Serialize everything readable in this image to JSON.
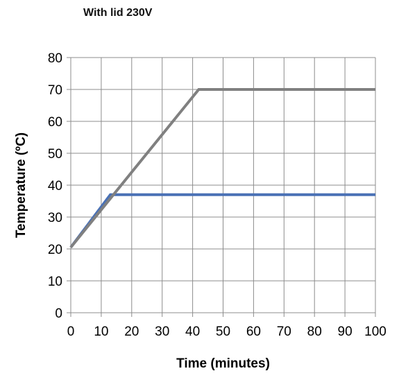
{
  "chart_data": {
    "type": "line",
    "title": "With lid 230V",
    "xlabel": "Time (minutes)",
    "ylabel": "Temperature (ºC)",
    "xlim": [
      0,
      100
    ],
    "ylim": [
      0,
      80
    ],
    "x_ticks": [
      0,
      10,
      20,
      30,
      40,
      50,
      60,
      70,
      80,
      90,
      100
    ],
    "y_ticks": [
      0,
      10,
      20,
      30,
      40,
      50,
      60,
      70,
      80
    ],
    "grid": true,
    "legend": "none",
    "series": [
      {
        "color": "#4a71b5",
        "points": [
          [
            0,
            20.5
          ],
          [
            13,
            37
          ],
          [
            100,
            37
          ]
        ]
      },
      {
        "color": "#808080",
        "points": [
          [
            0,
            20.5
          ],
          [
            42,
            70
          ],
          [
            100,
            70
          ]
        ]
      }
    ]
  }
}
